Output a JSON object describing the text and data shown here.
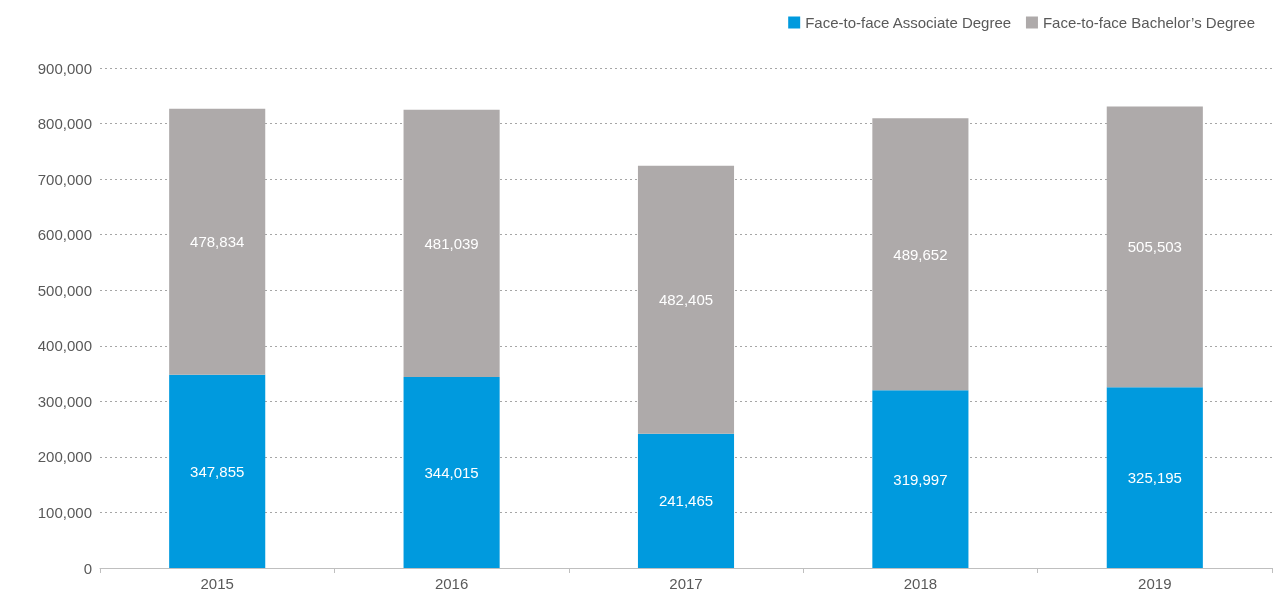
{
  "chart_data": {
    "type": "bar",
    "stacked": true,
    "categories": [
      "2015",
      "2016",
      "2017",
      "2018",
      "2019"
    ],
    "series": [
      {
        "name": "Face-to-face Associate Degree",
        "color": "#009ade",
        "values": [
          347855,
          344015,
          241465,
          319997,
          325195
        ],
        "value_labels": [
          "347,855",
          "344,015",
          "241,465",
          "319,997",
          "325,195"
        ]
      },
      {
        "name": "Face-to-face Bachelor’s Degree",
        "color": "#aeaaaa",
        "values": [
          478834,
          481039,
          482405,
          489652,
          505503
        ],
        "value_labels": [
          "478,834",
          "481,039",
          "482,405",
          "489,652",
          "505,503"
        ]
      }
    ],
    "ylim": [
      0,
      900000
    ],
    "yticks": [
      {
        "value": 0,
        "label": "0"
      },
      {
        "value": 100000,
        "label": "100,000"
      },
      {
        "value": 200000,
        "label": "200,000"
      },
      {
        "value": 300000,
        "label": "300,000"
      },
      {
        "value": 400000,
        "label": "400,000"
      },
      {
        "value": 500000,
        "label": "500,000"
      },
      {
        "value": 600000,
        "label": "600,000"
      },
      {
        "value": 700000,
        "label": "700,000"
      },
      {
        "value": 800000,
        "label": "800,000"
      },
      {
        "value": 900000,
        "label": "900,000"
      }
    ],
    "grid": "y",
    "legend": "top right"
  }
}
